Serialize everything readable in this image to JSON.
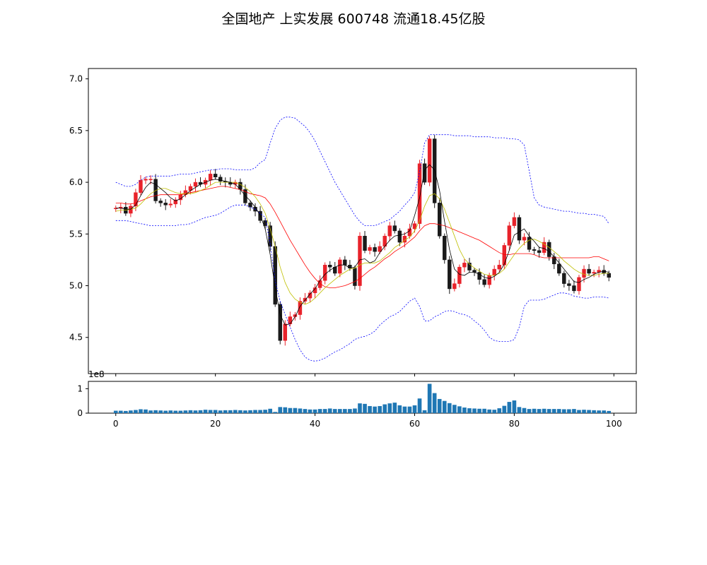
{
  "chart_data": {
    "type": "candlestick",
    "title": "全国地产 上实发展 600748 流通18.45亿股",
    "colors": {
      "up": "#e8222a",
      "down": "#1a1a1a",
      "ma_short": "#000000",
      "ma_mid": "#bfbf00",
      "ma_long": "#ff0000",
      "boll_band": "#0000ff",
      "volume": "#1f77b4"
    },
    "price_axis": {
      "ylim": [
        4.15,
        7.1
      ],
      "ticks": [
        "4.5",
        "5.0",
        "5.5",
        "6.0",
        "6.5",
        "7.0"
      ]
    },
    "volume_axis": {
      "ylim": [
        0,
        130000000
      ],
      "ticks": [
        "0",
        "1"
      ],
      "tick_values": [
        0,
        100000000
      ],
      "offset_label": "1e8"
    },
    "x_axis": {
      "xlim": [
        -5.5,
        104.5
      ],
      "ticks": [
        "0",
        "20",
        "40",
        "60",
        "80",
        "100"
      ],
      "tick_values": [
        0,
        20,
        40,
        60,
        80,
        100
      ]
    },
    "close": [
      5.75,
      5.76,
      5.7,
      5.77,
      5.9,
      6.02,
      6.03,
      6.03,
      5.82,
      5.8,
      5.78,
      5.79,
      5.83,
      5.88,
      5.92,
      5.96,
      6.0,
      5.98,
      6.02,
      6.08,
      6.05,
      6.01,
      6.0,
      5.98,
      6.0,
      5.93,
      5.8,
      5.76,
      5.72,
      5.63,
      5.58,
      5.38,
      4.82,
      4.47,
      4.63,
      4.7,
      4.72,
      4.85,
      4.88,
      4.93,
      4.98,
      5.05,
      5.2,
      5.18,
      5.12,
      5.25,
      5.2,
      5.17,
      5.0,
      5.48,
      5.34,
      5.37,
      5.33,
      5.38,
      5.48,
      5.58,
      5.53,
      5.42,
      5.48,
      5.55,
      5.6,
      6.18,
      6.0,
      6.42,
      5.8,
      5.48,
      5.25,
      4.97,
      5.02,
      5.18,
      5.22,
      5.15,
      5.13,
      5.06,
      5.01,
      5.1,
      5.16,
      5.2,
      5.39,
      5.58,
      5.66,
      5.44,
      5.47,
      5.35,
      5.34,
      5.32,
      5.42,
      5.28,
      5.21,
      5.12,
      5.02,
      5.0,
      4.95,
      5.08,
      5.16,
      5.12,
      5.13,
      5.15,
      5.12,
      5.08
    ],
    "ma_short": [
      5.75,
      5.75,
      5.74,
      5.74,
      5.78,
      5.87,
      5.95,
      6.0,
      5.98,
      5.94,
      5.9,
      5.85,
      5.82,
      5.84,
      5.88,
      5.92,
      5.95,
      5.98,
      6.0,
      6.02,
      6.03,
      6.02,
      6.01,
      6.0,
      5.98,
      5.93,
      5.87,
      5.82,
      5.76,
      5.68,
      5.55,
      5.3,
      4.98,
      4.72,
      4.62,
      4.63,
      4.7,
      4.8,
      4.86,
      4.92,
      4.97,
      5.05,
      5.11,
      5.15,
      5.18,
      5.2,
      5.2,
      5.17,
      5.18,
      5.25,
      5.26,
      5.22,
      5.24,
      5.32,
      5.38,
      5.44,
      5.48,
      5.49,
      5.5,
      5.53,
      5.68,
      5.85,
      6.12,
      6.17,
      6.12,
      5.92,
      5.62,
      5.35,
      5.16,
      5.11,
      5.1,
      5.13,
      5.13,
      5.11,
      5.08,
      5.07,
      5.09,
      5.13,
      5.21,
      5.34,
      5.49,
      5.52,
      5.55,
      5.48,
      5.43,
      5.37,
      5.36,
      5.33,
      5.28,
      5.22,
      5.16,
      5.1,
      5.04,
      5.03,
      5.06,
      5.08,
      5.11,
      5.13,
      5.14,
      5.13
    ],
    "ma_mid": [
      5.72,
      5.73,
      5.73,
      5.74,
      5.75,
      5.79,
      5.84,
      5.89,
      5.92,
      5.94,
      5.94,
      5.92,
      5.9,
      5.89,
      5.89,
      5.89,
      5.9,
      5.92,
      5.94,
      5.97,
      6.0,
      6.0,
      6.0,
      6.0,
      6.0,
      5.98,
      5.95,
      5.91,
      5.86,
      5.79,
      5.7,
      5.55,
      5.38,
      5.18,
      5.03,
      4.93,
      4.87,
      4.84,
      4.82,
      4.84,
      4.88,
      4.93,
      4.98,
      5.02,
      5.06,
      5.1,
      5.13,
      5.16,
      5.17,
      5.2,
      5.22,
      5.22,
      5.22,
      5.24,
      5.28,
      5.32,
      5.37,
      5.4,
      5.44,
      5.47,
      5.53,
      5.63,
      5.77,
      5.87,
      5.89,
      5.84,
      5.74,
      5.61,
      5.48,
      5.35,
      5.26,
      5.21,
      5.17,
      5.14,
      5.11,
      5.1,
      5.1,
      5.12,
      5.16,
      5.23,
      5.3,
      5.36,
      5.41,
      5.44,
      5.45,
      5.43,
      5.4,
      5.37,
      5.33,
      5.29,
      5.24,
      5.2,
      5.16,
      5.13,
      5.11,
      5.1,
      5.1,
      5.11,
      5.12,
      5.12
    ],
    "ma_long": [
      5.8,
      5.8,
      5.79,
      5.79,
      5.8,
      5.82,
      5.84,
      5.86,
      5.87,
      5.88,
      5.88,
      5.88,
      5.88,
      5.88,
      5.89,
      5.9,
      5.91,
      5.92,
      5.93,
      5.94,
      5.95,
      5.96,
      5.96,
      5.95,
      5.94,
      5.93,
      5.91,
      5.89,
      5.88,
      5.87,
      5.85,
      5.79,
      5.71,
      5.62,
      5.53,
      5.44,
      5.36,
      5.28,
      5.2,
      5.13,
      5.07,
      5.02,
      4.99,
      4.98,
      4.98,
      4.99,
      5.0,
      5.02,
      5.04,
      5.07,
      5.11,
      5.15,
      5.18,
      5.22,
      5.26,
      5.29,
      5.33,
      5.36,
      5.39,
      5.43,
      5.47,
      5.53,
      5.58,
      5.6,
      5.6,
      5.59,
      5.58,
      5.56,
      5.54,
      5.52,
      5.5,
      5.48,
      5.46,
      5.44,
      5.41,
      5.38,
      5.35,
      5.32,
      5.3,
      5.3,
      5.31,
      5.31,
      5.31,
      5.31,
      5.3,
      5.28,
      5.27,
      5.27,
      5.27,
      5.27,
      5.27,
      5.27,
      5.27,
      5.27,
      5.27,
      5.27,
      5.28,
      5.28,
      5.26,
      5.24
    ],
    "boll_upper": [
      6.0,
      5.98,
      5.96,
      5.96,
      5.98,
      6.02,
      6.05,
      6.06,
      6.06,
      6.06,
      6.06,
      6.06,
      6.07,
      6.08,
      6.08,
      6.08,
      6.09,
      6.1,
      6.11,
      6.12,
      6.12,
      6.13,
      6.13,
      6.13,
      6.12,
      6.12,
      6.12,
      6.12,
      6.14,
      6.19,
      6.22,
      6.38,
      6.52,
      6.6,
      6.63,
      6.63,
      6.62,
      6.58,
      6.54,
      6.48,
      6.4,
      6.3,
      6.2,
      6.1,
      6.0,
      5.92,
      5.84,
      5.76,
      5.68,
      5.62,
      5.58,
      5.58,
      5.58,
      5.6,
      5.62,
      5.64,
      5.68,
      5.72,
      5.78,
      5.83,
      5.9,
      6.1,
      6.38,
      6.46,
      6.46,
      6.46,
      6.46,
      6.46,
      6.45,
      6.45,
      6.45,
      6.45,
      6.44,
      6.44,
      6.44,
      6.44,
      6.43,
      6.43,
      6.43,
      6.42,
      6.42,
      6.41,
      6.36,
      6.11,
      5.85,
      5.78,
      5.76,
      5.75,
      5.74,
      5.73,
      5.72,
      5.72,
      5.71,
      5.7,
      5.7,
      5.69,
      5.69,
      5.68,
      5.67,
      5.6
    ],
    "boll_lower": [
      5.63,
      5.63,
      5.63,
      5.62,
      5.61,
      5.6,
      5.59,
      5.58,
      5.58,
      5.58,
      5.58,
      5.58,
      5.58,
      5.59,
      5.59,
      5.6,
      5.62,
      5.64,
      5.66,
      5.67,
      5.68,
      5.7,
      5.73,
      5.76,
      5.78,
      5.78,
      5.78,
      5.76,
      5.74,
      5.7,
      5.66,
      5.4,
      5.05,
      4.85,
      4.72,
      4.6,
      4.48,
      4.38,
      4.31,
      4.28,
      4.27,
      4.28,
      4.3,
      4.33,
      4.36,
      4.38,
      4.41,
      4.44,
      4.48,
      4.5,
      4.51,
      4.53,
      4.56,
      4.62,
      4.66,
      4.7,
      4.72,
      4.75,
      4.8,
      4.85,
      4.88,
      4.8,
      4.66,
      4.66,
      4.7,
      4.72,
      4.75,
      4.76,
      4.75,
      4.73,
      4.72,
      4.7,
      4.66,
      4.62,
      4.57,
      4.5,
      4.47,
      4.46,
      4.46,
      4.46,
      4.48,
      4.6,
      4.8,
      4.86,
      4.86,
      4.86,
      4.87,
      4.89,
      4.91,
      4.93,
      4.93,
      4.92,
      4.9,
      4.89,
      4.88,
      4.88,
      4.89,
      4.89,
      4.89,
      4.88
    ],
    "volume": [
      10000000,
      10000000,
      9000000,
      11000000,
      13000000,
      16000000,
      15000000,
      11000000,
      12000000,
      11000000,
      10000000,
      11000000,
      10000000,
      10000000,
      11000000,
      12000000,
      11000000,
      12000000,
      14000000,
      13000000,
      13000000,
      11000000,
      12000000,
      12000000,
      13000000,
      12000000,
      11000000,
      12000000,
      13000000,
      13000000,
      14000000,
      18000000,
      5000000,
      25000000,
      24000000,
      21000000,
      21000000,
      19000000,
      17000000,
      15000000,
      15000000,
      17000000,
      17000000,
      19000000,
      17000000,
      17000000,
      17000000,
      17000000,
      19000000,
      40000000,
      38000000,
      29000000,
      27000000,
      29000000,
      36000000,
      40000000,
      43000000,
      32000000,
      27000000,
      27000000,
      32000000,
      60000000,
      12000000,
      120000000,
      82000000,
      58000000,
      50000000,
      41000000,
      34000000,
      28000000,
      23000000,
      20000000,
      19000000,
      18000000,
      18000000,
      15000000,
      14000000,
      20000000,
      30000000,
      46000000,
      52000000,
      25000000,
      21000000,
      17000000,
      18000000,
      17000000,
      18000000,
      17000000,
      17000000,
      17000000,
      16000000,
      16000000,
      17000000,
      13000000,
      14000000,
      13000000,
      12000000,
      11000000,
      11000000,
      9000000
    ]
  }
}
